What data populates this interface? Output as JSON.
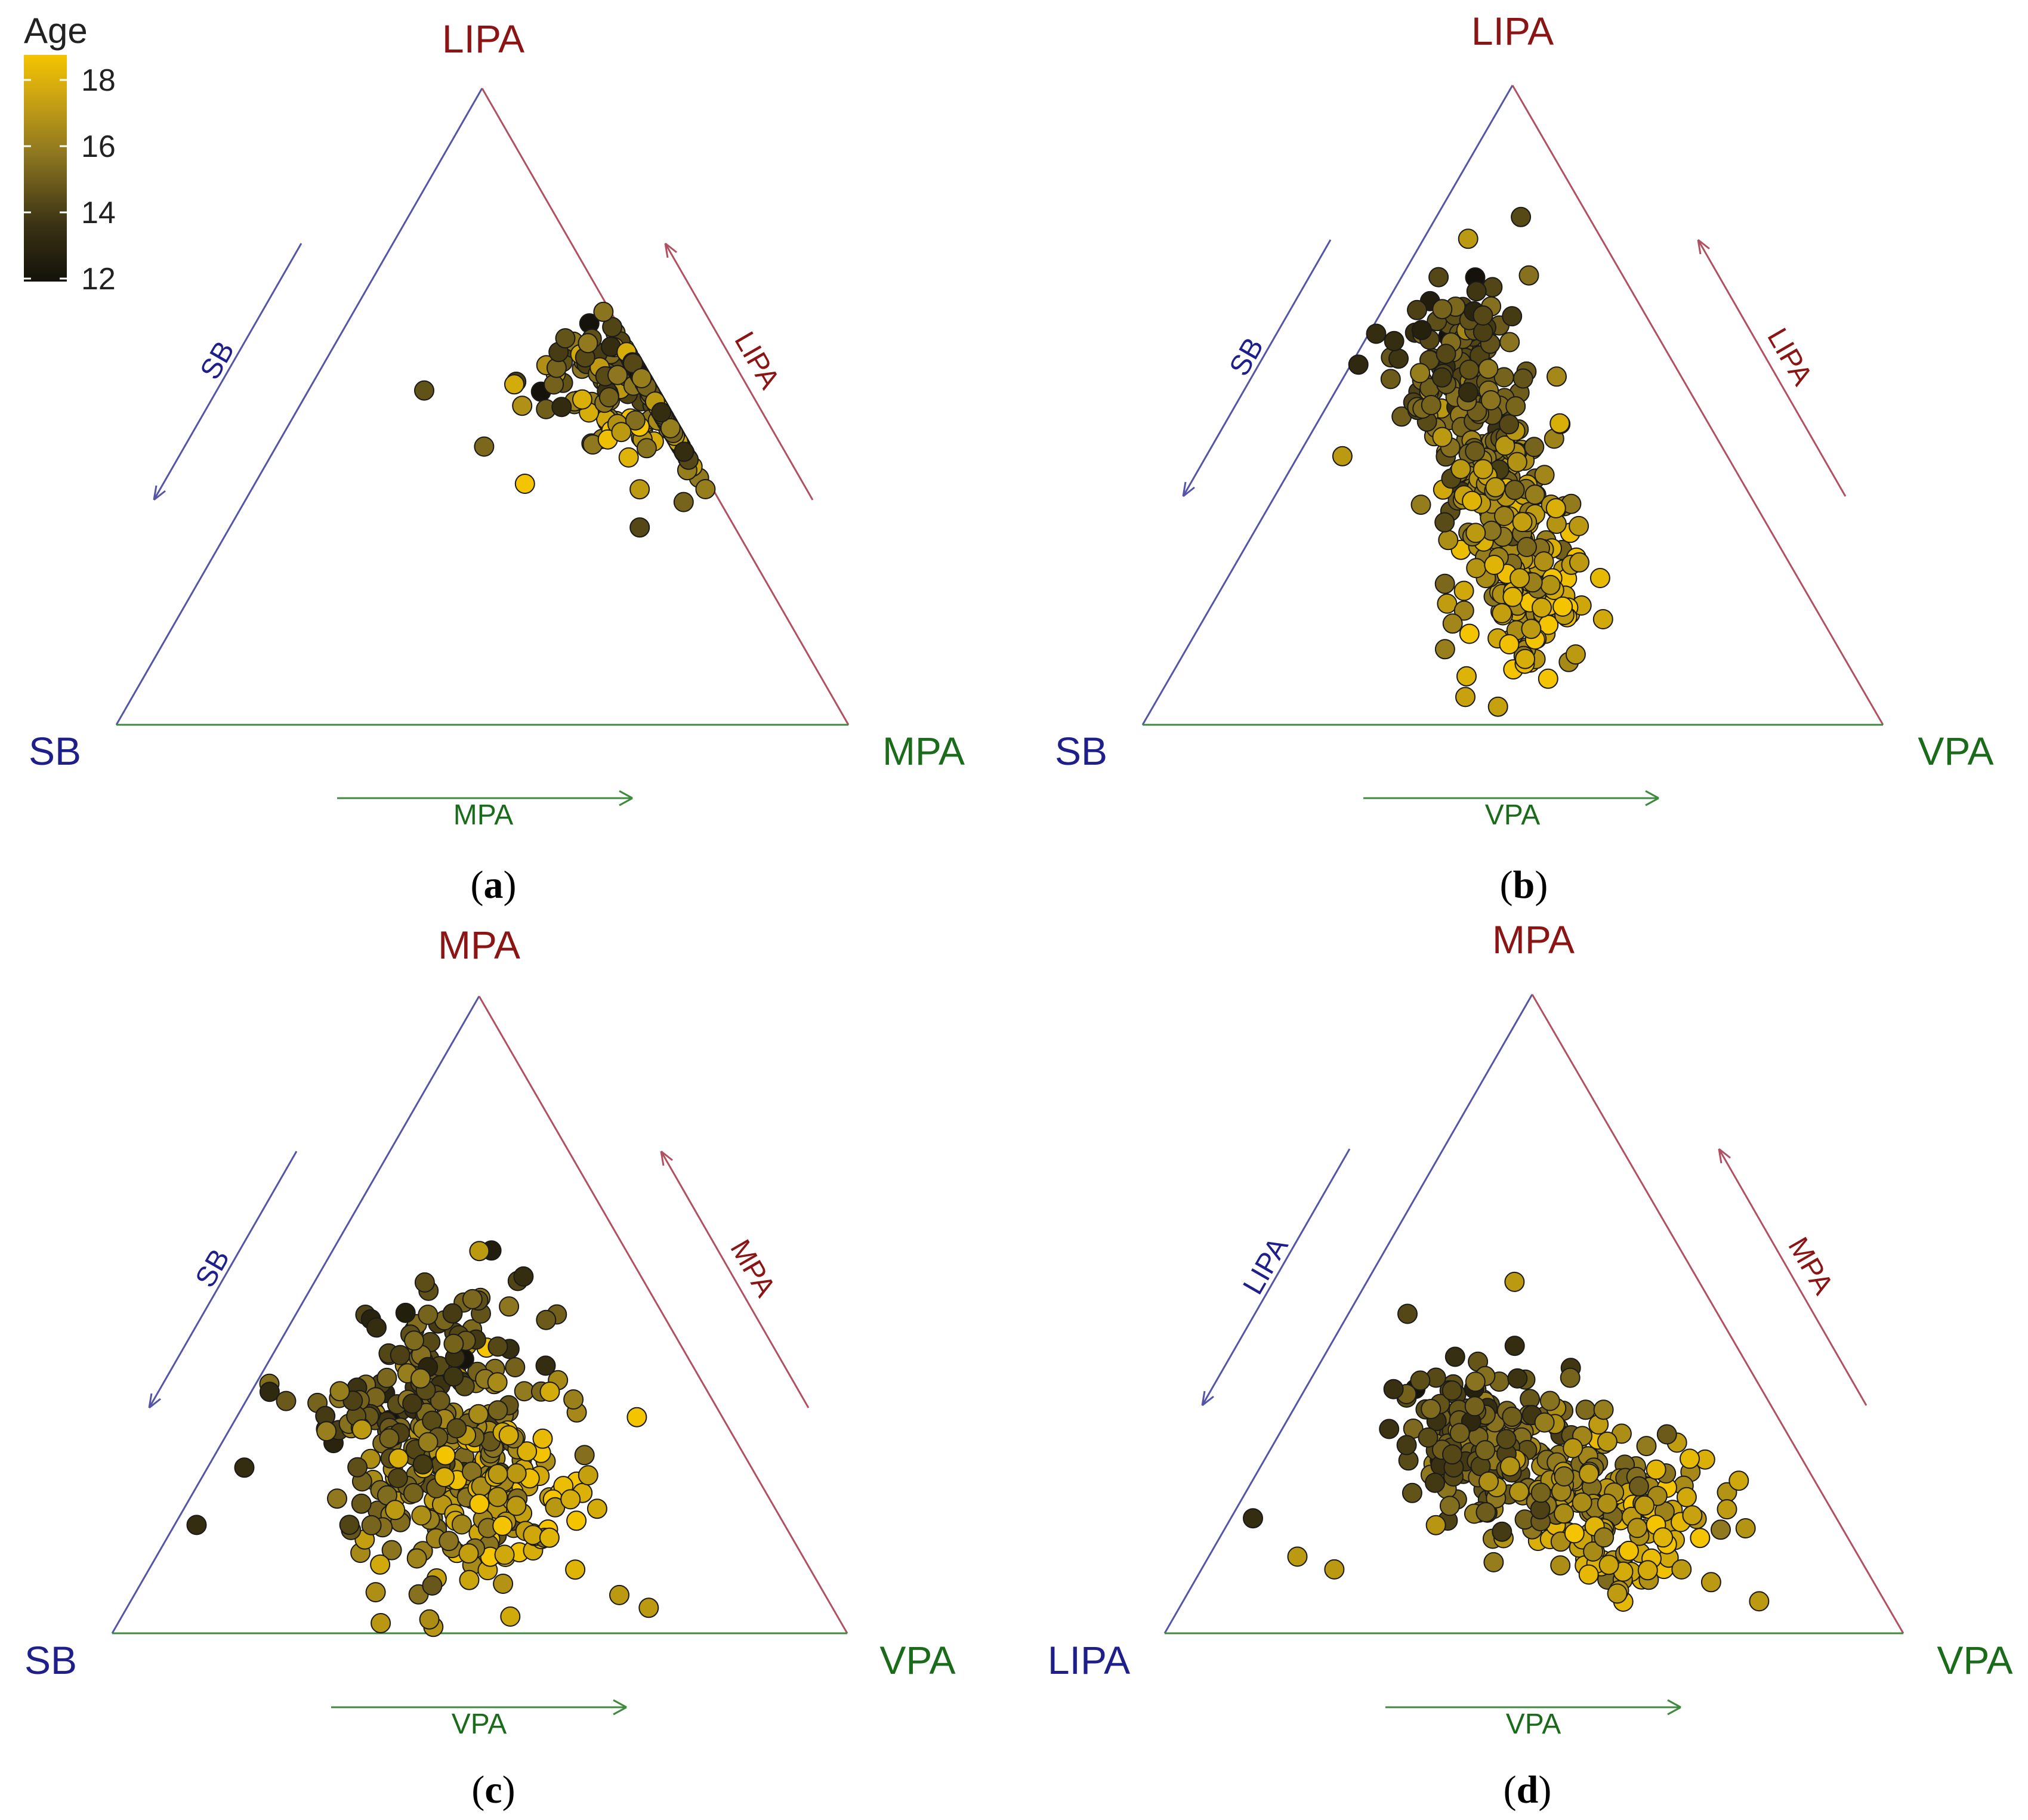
{
  "chart_data": [
    {
      "type": "scatter",
      "subtype": "ternary",
      "panel": "a",
      "caption_letter": "a",
      "vertices": {
        "top": "LIPA",
        "left": "SB",
        "right": "MPA"
      },
      "arrow_labels": {
        "left_side": "SB",
        "right_side": "LIPA",
        "bottom": "MPA"
      },
      "color_variable": "Age",
      "n_points": 380,
      "points": [
        [
          0.6,
          0.62,
          14
        ],
        [
          0.55,
          0.65,
          17
        ],
        [
          0.43,
          0.72,
          16
        ],
        [
          0.5,
          0.58,
          15
        ],
        [
          0.46,
          0.46,
          17
        ],
        [
          0.4,
          0.58,
          16
        ],
        [
          0.64,
          0.52,
          13
        ],
        [
          0.35,
          0.6,
          15
        ],
        [
          0.57,
          0.49,
          18
        ],
        [
          0.45,
          0.62,
          14
        ],
        [
          0.37,
          0.53,
          17
        ],
        [
          0.66,
          0.57,
          15
        ],
        [
          0.52,
          0.68,
          13
        ],
        [
          0.42,
          0.49,
          18
        ],
        [
          0.7,
          0.52,
          14
        ],
        [
          0.48,
          0.54,
          16
        ],
        [
          0.59,
          0.56,
          17
        ],
        [
          0.31,
          0.56,
          14
        ],
        [
          0.55,
          0.45,
          16
        ],
        [
          0.62,
          0.63,
          13
        ]
      ]
    },
    {
      "type": "scatter",
      "subtype": "ternary",
      "panel": "b",
      "caption_letter": "b",
      "vertices": {
        "top": "LIPA",
        "left": "SB",
        "right": "VPA"
      },
      "arrow_labels": {
        "left_side": "SB",
        "right_side": "LIPA",
        "bottom": "VPA"
      },
      "color_variable": "Age",
      "n_points": 380,
      "points": [
        [
          0.76,
          0.06,
          17
        ],
        [
          0.7,
          0.05,
          14
        ],
        [
          0.65,
          0.08,
          15
        ],
        [
          0.6,
          0.04,
          13
        ],
        [
          0.55,
          0.1,
          16
        ],
        [
          0.5,
          0.14,
          15
        ],
        [
          0.45,
          0.18,
          17
        ],
        [
          0.4,
          0.23,
          17
        ],
        [
          0.35,
          0.27,
          18
        ],
        [
          0.3,
          0.3,
          17
        ],
        [
          0.25,
          0.35,
          18
        ],
        [
          0.2,
          0.4,
          18
        ],
        [
          0.15,
          0.45,
          17
        ],
        [
          0.11,
          0.53,
          17
        ],
        [
          0.42,
          0.06,
          17
        ],
        [
          0.52,
          0.18,
          13
        ],
        [
          0.58,
          0.12,
          14
        ],
        [
          0.47,
          0.26,
          14
        ],
        [
          0.36,
          0.35,
          16
        ],
        [
          0.64,
          0.14,
          14
        ]
      ]
    },
    {
      "type": "scatter",
      "subtype": "ternary",
      "panel": "c",
      "caption_letter": "c",
      "vertices": {
        "top": "MPA",
        "left": "SB",
        "right": "VPA"
      },
      "arrow_labels": {
        "left_side": "SB",
        "right_side": "MPA",
        "bottom": "VPA"
      },
      "color_variable": "Age",
      "n_points": 380,
      "points": [
        [
          0.6,
          0.2,
          17
        ],
        [
          0.56,
          0.28,
          13
        ],
        [
          0.5,
          0.18,
          15
        ],
        [
          0.45,
          0.3,
          14
        ],
        [
          0.4,
          0.22,
          16
        ],
        [
          0.35,
          0.35,
          15
        ],
        [
          0.3,
          0.28,
          16
        ],
        [
          0.25,
          0.4,
          17
        ],
        [
          0.2,
          0.45,
          17
        ],
        [
          0.15,
          0.52,
          18
        ],
        [
          0.1,
          0.58,
          18
        ],
        [
          0.06,
          0.66,
          17
        ],
        [
          0.04,
          0.71,
          17
        ],
        [
          0.26,
          0.05,
          13
        ],
        [
          0.17,
          0.03,
          13
        ],
        [
          0.48,
          0.12,
          13
        ],
        [
          0.42,
          0.38,
          13
        ],
        [
          0.32,
          0.18,
          17
        ],
        [
          0.22,
          0.3,
          15
        ],
        [
          0.38,
          0.12,
          16
        ]
      ]
    },
    {
      "type": "scatter",
      "subtype": "ternary",
      "panel": "d",
      "caption_letter": "d",
      "vertices": {
        "top": "MPA",
        "left": "LIPA",
        "right": "VPA"
      },
      "arrow_labels": {
        "left_side": "LIPA",
        "right_side": "MPA",
        "bottom": "VPA"
      },
      "color_variable": "Age",
      "n_points": 380,
      "points": [
        [
          0.55,
          0.2,
          17
        ],
        [
          0.5,
          0.08,
          14
        ],
        [
          0.45,
          0.25,
          13
        ],
        [
          0.4,
          0.35,
          15
        ],
        [
          0.38,
          0.2,
          14
        ],
        [
          0.33,
          0.35,
          16
        ],
        [
          0.3,
          0.45,
          17
        ],
        [
          0.25,
          0.45,
          17
        ],
        [
          0.2,
          0.55,
          17
        ],
        [
          0.15,
          0.6,
          18
        ],
        [
          0.1,
          0.65,
          17
        ],
        [
          0.05,
          0.78,
          17
        ],
        [
          0.18,
          0.03,
          13
        ],
        [
          0.12,
          0.12,
          17
        ],
        [
          0.1,
          0.18,
          17
        ],
        [
          0.28,
          0.25,
          14
        ],
        [
          0.35,
          0.42,
          16
        ],
        [
          0.22,
          0.4,
          15
        ],
        [
          0.15,
          0.52,
          16
        ],
        [
          0.08,
          0.7,
          17
        ]
      ]
    }
  ],
  "legend": {
    "title": "Age",
    "ticks": [
      "18",
      "16",
      "14",
      "12"
    ],
    "range": [
      12,
      18.6
    ],
    "color_low": "#14120a",
    "color_high": "#f5c400"
  },
  "colors": {
    "left_vertex": "#1f1f8c",
    "top_vertex": "#8b1414",
    "right_vertex": "#1a6b1a",
    "left_edge": "#5555a8",
    "right_edge": "#b05060",
    "bottom_edge": "#3e8a3e",
    "marker_stroke": "#1a1a1a"
  }
}
